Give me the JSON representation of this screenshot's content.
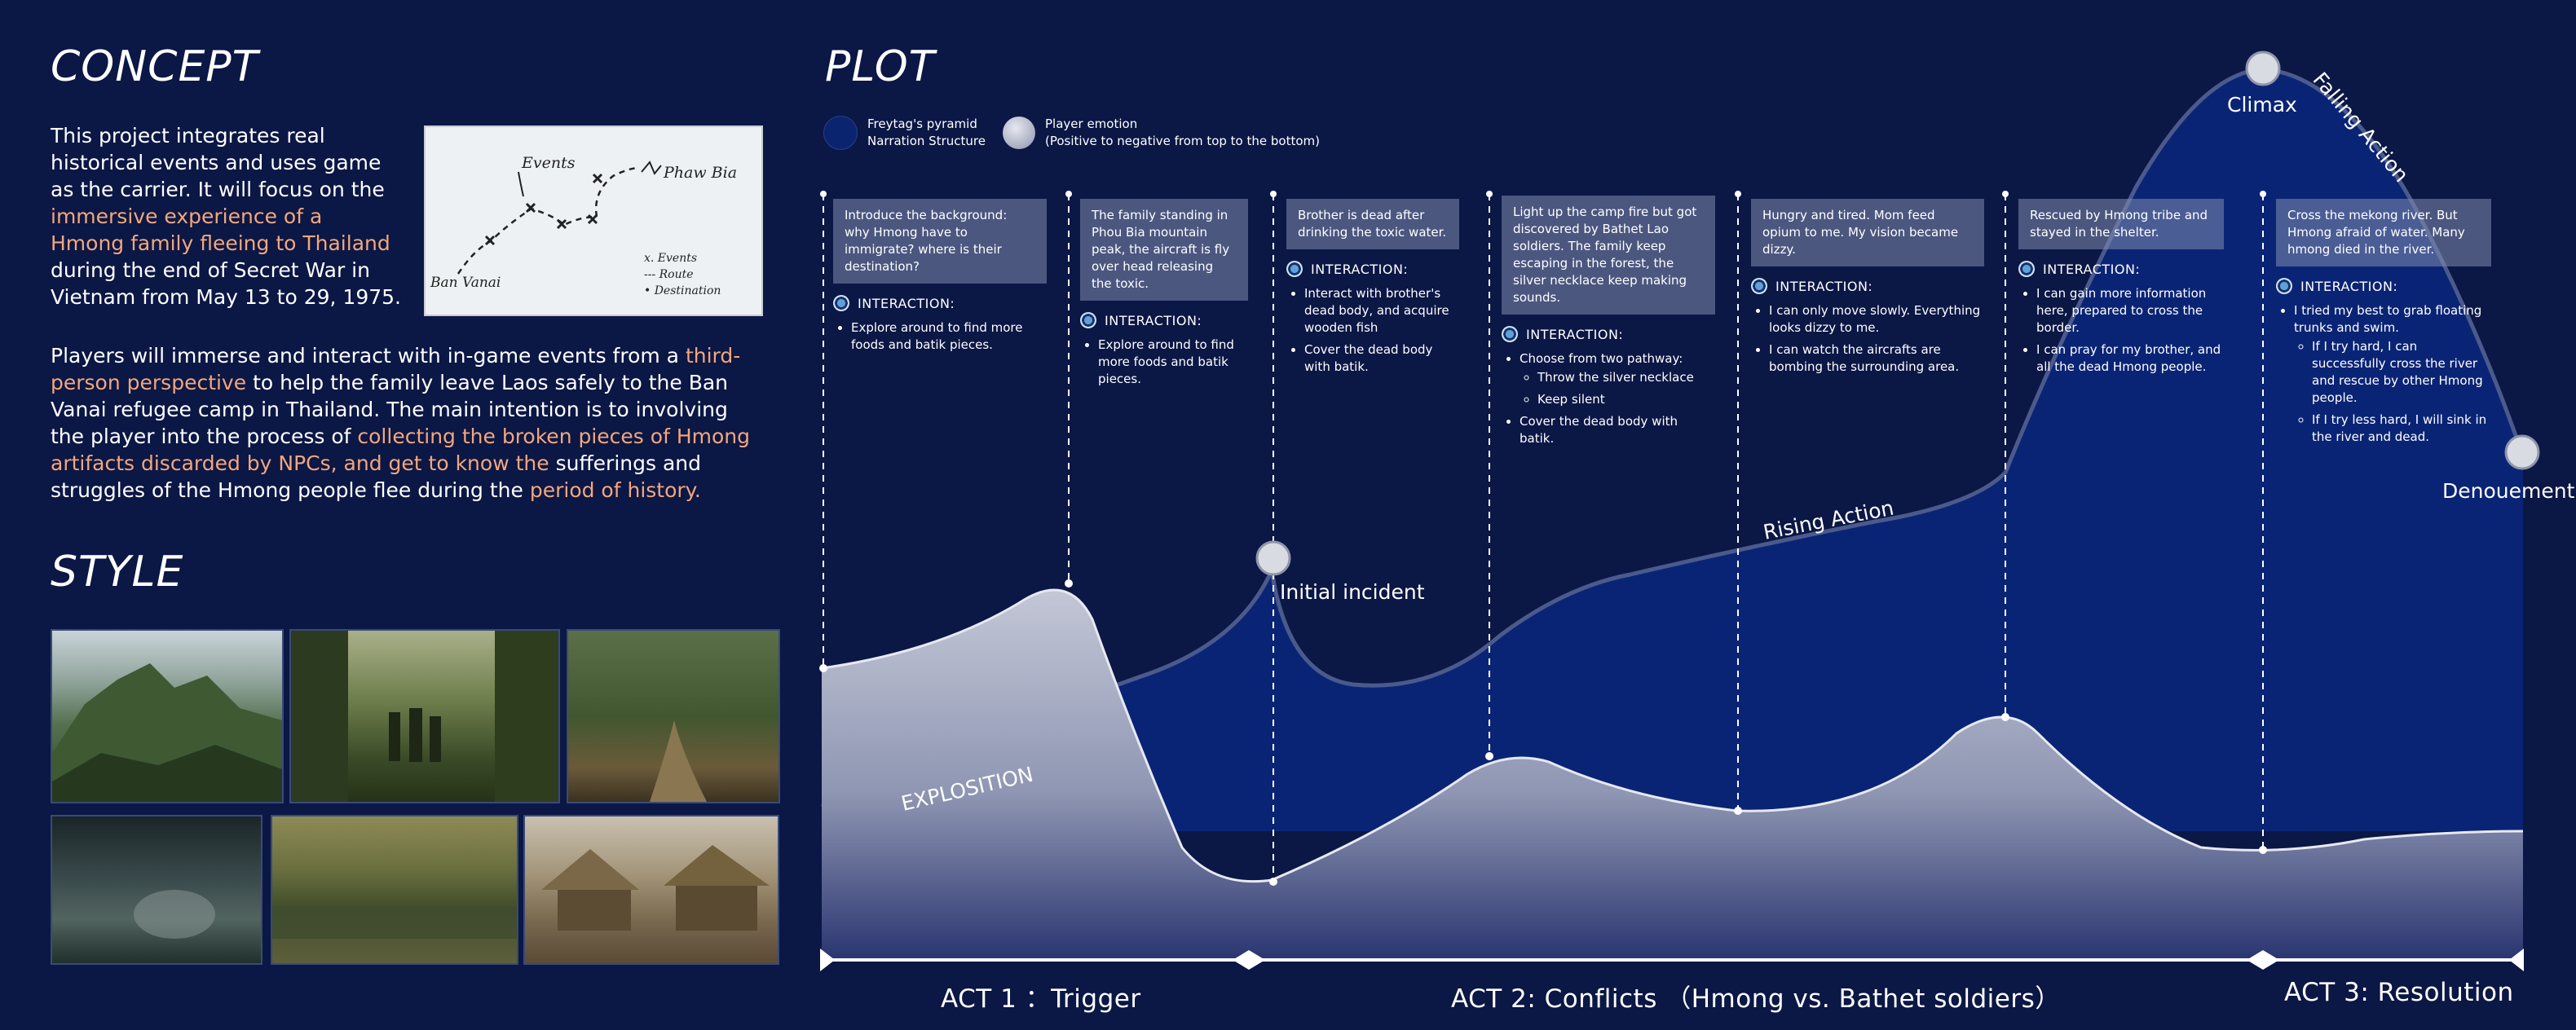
{
  "concept": {
    "title": "CONCEPT",
    "p1": [
      {
        "t": "This project integrates real historical events and uses game as the carrier. It will focus on the ",
        "hl": false
      },
      {
        "t": "immersive experience of a Hmong family fleeing to Thailand",
        "hl": true
      },
      {
        "t": " during the end of Secret War in Vietnam from May 13 to 29, 1975.",
        "hl": false
      }
    ],
    "p2": [
      {
        "t": "Players will immerse and interact with in-game events from a ",
        "hl": false
      },
      {
        "t": "third-person perspective",
        "hl": true
      },
      {
        "t": " to help the family leave Laos safely to the Ban Vanai refugee camp in Thailand. The main intention is to involving the player into the process of ",
        "hl": false
      },
      {
        "t": "collecting the broken pieces of Hmong artifacts discarded by NPCs, and get to know the",
        "hl": true
      },
      {
        "t": " sufferings and struggles of the Hmong people flee during the ",
        "hl": false
      },
      {
        "t": "period of history.",
        "hl": true
      }
    ],
    "sketch": {
      "events": "Events",
      "phaw": "Phaw Bia",
      "ban": "Ban Vanai",
      "legend": [
        "x. Events",
        "--- Route",
        "• Destination"
      ]
    }
  },
  "style": {
    "title": "STYLE"
  },
  "plot": {
    "title": "PLOT",
    "legend": {
      "freytag_1": "Freytag's pyramid",
      "freytag_2": "Narration Structure",
      "emotion_1": "Player emotion",
      "emotion_2": "(Positive to negative from top to the bottom)"
    },
    "interaction_label": "INTERACTION:",
    "columns": [
      {
        "note": "Introduce the background: why Hmong have to immigrate? where is their destination?",
        "items": [
          "Explore around to find more foods and batik pieces."
        ]
      },
      {
        "note": "The family standing in Phou Bia mountain peak, the aircraft is fly over head releasing the toxic.",
        "items": [
          "Explore around to find more foods and batik pieces."
        ]
      },
      {
        "note": "Brother is dead after drinking the toxic water.",
        "items": [
          "Interact with brother's dead body, and acquire wooden fish",
          "Cover the dead body with batik."
        ]
      },
      {
        "note": "Light up the camp fire but got discovered by Bathet Lao soldiers. The family keep escaping in the forest, the silver necklace keep making sounds.",
        "items": [
          "Choose from two pathway:",
          "Cover the dead body with batik."
        ],
        "sub": [
          "Throw the silver necklace",
          "Keep silent"
        ]
      },
      {
        "note": "Hungry and tired. Mom feed opium to me. My vision became dizzy.",
        "items": [
          "I can only move slowly. Everything looks dizzy to me.",
          "I can watch the aircrafts are bombing the surrounding area."
        ]
      },
      {
        "note": "Rescued by Hmong tribe and stayed in the shelter.",
        "items": [
          "I can gain more information here, prepared to cross the border.",
          "I can pray for my brother, and all the dead Hmong people."
        ]
      },
      {
        "note": "Cross the mekong river. But Hmong afraid of water. Many hmong died in the river.",
        "items": [
          "I tried my best to grab floating trunks and swim."
        ],
        "sub": [
          "If I try hard, I can successfully cross the river and rescue by other Hmong people.",
          "If I try less hard, I will sink in the river and dead."
        ]
      }
    ],
    "labels": {
      "explosition": "EXPLOSITION",
      "initial": "Initial incident",
      "rising": "Rising Action",
      "climax": "Climax",
      "falling": "Falling Action",
      "denouement": "Denouement"
    },
    "acts": [
      "ACT 1 ：Trigger",
      "ACT 2: Conflicts （Hmong vs. Bathet soldiers）",
      "ACT 3: Resolution"
    ]
  }
}
